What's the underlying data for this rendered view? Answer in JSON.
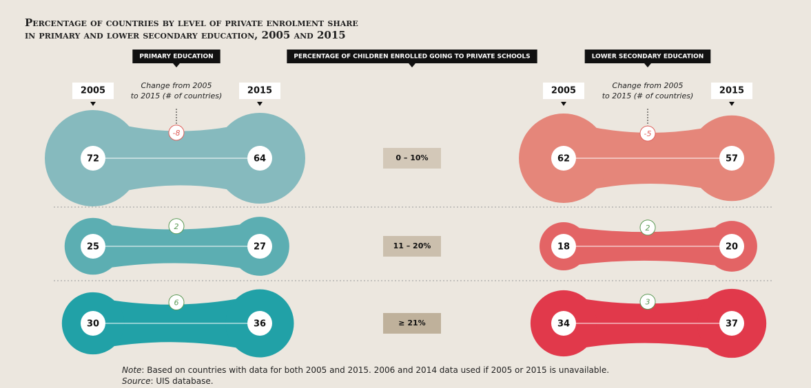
{
  "chart_data": {
    "type": "dumbbell",
    "title_lines": [
      "Percentage of countries by level of private enrolment share",
      "in primary and lower secondary education, 2005 and 2015"
    ],
    "center_label": "PERCENTAGE OF CHILDREN ENROLLED GOING TO PRIVATE SCHOOLS",
    "categories": [
      "0 – 10%",
      "11 – 20%",
      "≥ 21%"
    ],
    "category_colors": [
      "#d3c8b8",
      "#cbbfad",
      "#bfb19b"
    ],
    "panels": [
      {
        "name": "PRIMARY EDUCATION",
        "change_label": [
          "Change from 2005",
          "to 2015 (# of countries)"
        ],
        "series": [
          {
            "name": "2005",
            "values": [
              72,
              25,
              30
            ]
          },
          {
            "name": "2015",
            "values": [
              64,
              27,
              36
            ]
          }
        ],
        "change": [
          -8,
          2,
          6
        ],
        "colors": [
          "#86babe",
          "#5caeb2",
          "#21a1a7"
        ]
      },
      {
        "name": "LOWER SECONDARY EDUCATION",
        "change_label": [
          "Change from 2005",
          "to 2015 (# of countries)"
        ],
        "series": [
          {
            "name": "2005",
            "values": [
              62,
              18,
              34
            ]
          },
          {
            "name": "2015",
            "values": [
              57,
              20,
              37
            ]
          }
        ],
        "change": [
          -5,
          2,
          3
        ],
        "colors": [
          "#e5867a",
          "#e36465",
          "#e1394b"
        ]
      }
    ],
    "negative_color": "#e0605c",
    "positive_color": "#5b9a55",
    "note": {
      "label": "Note",
      "text": "Based on countries with data for both 2005 and 2015. 2006 and 2014 data used if 2005 or 2015 is unavailable."
    },
    "source": {
      "label": "Source",
      "text": "UIS database."
    }
  }
}
